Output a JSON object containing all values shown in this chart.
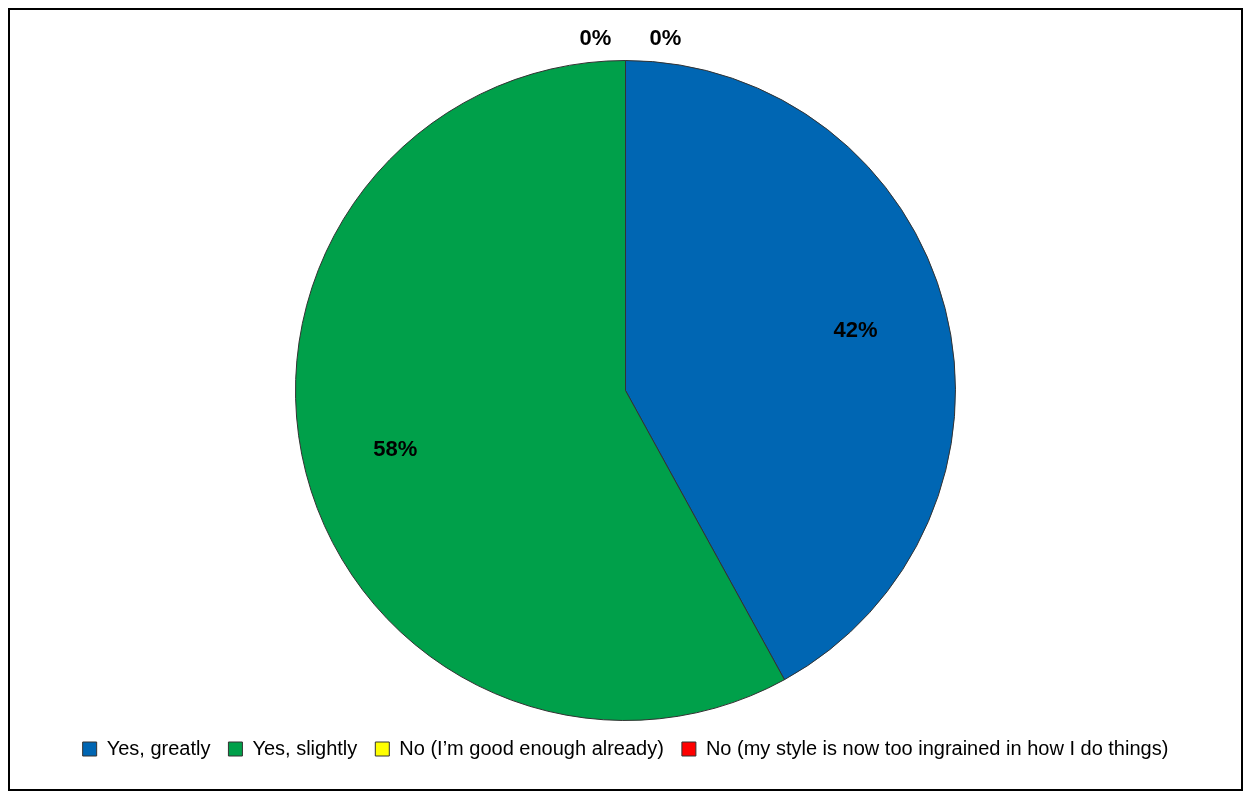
{
  "chart_data": {
    "type": "pie",
    "categories": [
      "Yes, greatly",
      "Yes, slightly",
      "No (I’m good enough already)",
      "No (my style is now too ingrained in how I do things)"
    ],
    "values": [
      42,
      58,
      0,
      0
    ],
    "colors": [
      "#0066b3",
      "#00a04a",
      "#ffff00",
      "#ff0000"
    ],
    "value_labels": [
      "42%",
      "58%",
      "0%",
      "0%"
    ],
    "legend": "bottom"
  }
}
